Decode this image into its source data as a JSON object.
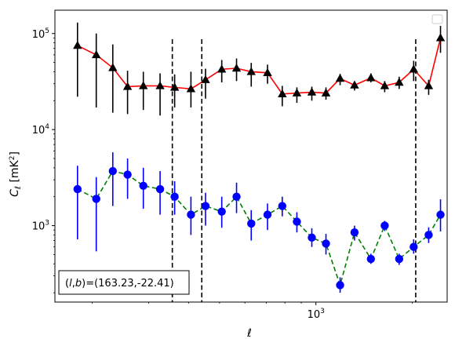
{
  "chart_data": {
    "type": "line",
    "xscale": "log",
    "yscale": "log",
    "xlim": [
      153,
      2570
    ],
    "ylim": [
      160,
      175000
    ],
    "xlabel": "ℓ",
    "ylabel": "C_ℓ [mK²]",
    "x_ticks": [
      {
        "value": 1000,
        "base": "10",
        "exp": "3"
      }
    ],
    "y_ticks": [
      {
        "value": 1000,
        "base": "10",
        "exp": "3"
      },
      {
        "value": 10000,
        "base": "10",
        "exp": "4"
      },
      {
        "value": 100000,
        "base": "10",
        "exp": "5"
      }
    ],
    "annotation": "(l, b)=(163.23,-22.41)",
    "vlines": [
      356,
      440,
      2050
    ],
    "legend": {
      "placement": "upper right",
      "entries": []
    },
    "series": [
      {
        "color": "#ff0000",
        "linestyle": "solid",
        "marker": "triangle",
        "marker_color": "#000000",
        "errorbar_color": "#000000",
        "x": [
          180,
          206,
          232,
          258,
          289,
          326,
          362,
          407,
          452,
          508,
          565,
          628,
          706,
          785,
          872,
          971,
          1075,
          1190,
          1320,
          1485,
          1640,
          1820,
          2020,
          2250,
          2450
        ],
        "y": [
          75000,
          60000,
          44000,
          28000,
          28500,
          28500,
          27500,
          26500,
          33000,
          42500,
          43500,
          40000,
          39000,
          23500,
          24000,
          24500,
          24000,
          34000,
          29000,
          34500,
          28500,
          31000,
          42500,
          28500,
          90000
        ],
        "yerr_low": [
          22000,
          17000,
          15000,
          14500,
          16000,
          14000,
          17000,
          17000,
          21000,
          31000,
          32000,
          28000,
          30000,
          17500,
          19000,
          20000,
          20500,
          29000,
          25500,
          31000,
          24500,
          26500,
          32000,
          23000,
          63000
        ],
        "yerr_high": [
          130000,
          100000,
          77000,
          41000,
          40000,
          38500,
          37500,
          40000,
          43000,
          53000,
          55000,
          49500,
          47500,
          28500,
          27500,
          28000,
          27500,
          38000,
          31500,
          38500,
          32000,
          35500,
          52000,
          33000,
          120000
        ]
      },
      {
        "color": "#008000",
        "linestyle": "dashed",
        "marker": "circle",
        "marker_color": "#0000ff",
        "errorbar_color": "#0000ff",
        "x": [
          180,
          206,
          232,
          258,
          289,
          326,
          362,
          407,
          452,
          508,
          565,
          628,
          706,
          785,
          872,
          971,
          1075,
          1190,
          1320,
          1485,
          1640,
          1820,
          2020,
          2250,
          2450
        ],
        "y": [
          2400,
          1900,
          3700,
          3400,
          2600,
          2400,
          2000,
          1300,
          1600,
          1400,
          2000,
          1050,
          1300,
          1600,
          1100,
          750,
          650,
          240,
          850,
          450,
          1000,
          450,
          600,
          800,
          1300
        ],
        "yerr_low": [
          720,
          540,
          1600,
          1900,
          1500,
          1300,
          1300,
          800,
          1000,
          950,
          1350,
          700,
          900,
          1250,
          850,
          600,
          500,
          200,
          700,
          400,
          880,
          390,
          510,
          660,
          870
        ],
        "yerr_high": [
          4200,
          3200,
          5800,
          5000,
          4000,
          3700,
          2900,
          2000,
          2200,
          2000,
          2800,
          1450,
          1700,
          2000,
          1380,
          940,
          820,
          290,
          1000,
          510,
          1120,
          510,
          720,
          960,
          1880
        ]
      }
    ]
  }
}
